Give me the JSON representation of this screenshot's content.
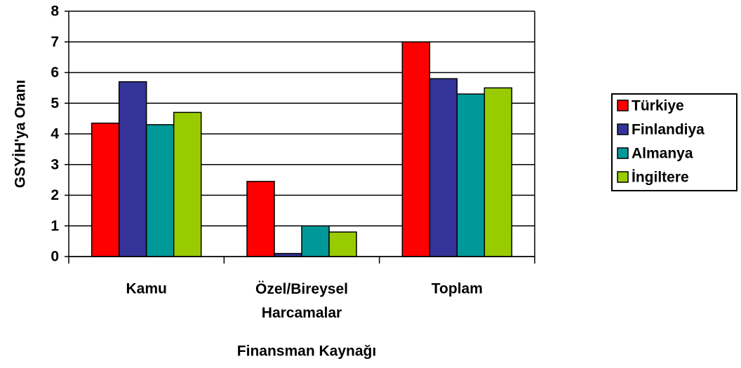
{
  "chart_data": {
    "type": "bar",
    "xlabel": "Finansman Kaynağı",
    "ylabel": "GSYİH'ya Oranı",
    "categories": [
      "Kamu",
      "Özel/Bireysel Harcamalar",
      "Toplam"
    ],
    "series": [
      {
        "name": "Türkiye",
        "color": "#ff0000",
        "values": [
          4.35,
          2.45,
          7.0
        ]
      },
      {
        "name": "Finlandiya",
        "color": "#333399",
        "values": [
          5.7,
          0.1,
          5.8
        ]
      },
      {
        "name": "Almanya",
        "color": "#009999",
        "values": [
          4.3,
          1.0,
          5.3
        ]
      },
      {
        "name": "İngiltere",
        "color": "#99cc00",
        "values": [
          4.7,
          0.8,
          5.5
        ]
      }
    ],
    "ylim": [
      0,
      8
    ],
    "yticks": [
      0,
      1,
      2,
      3,
      4,
      5,
      6,
      7,
      8
    ],
    "grid": true,
    "legend": "right"
  }
}
